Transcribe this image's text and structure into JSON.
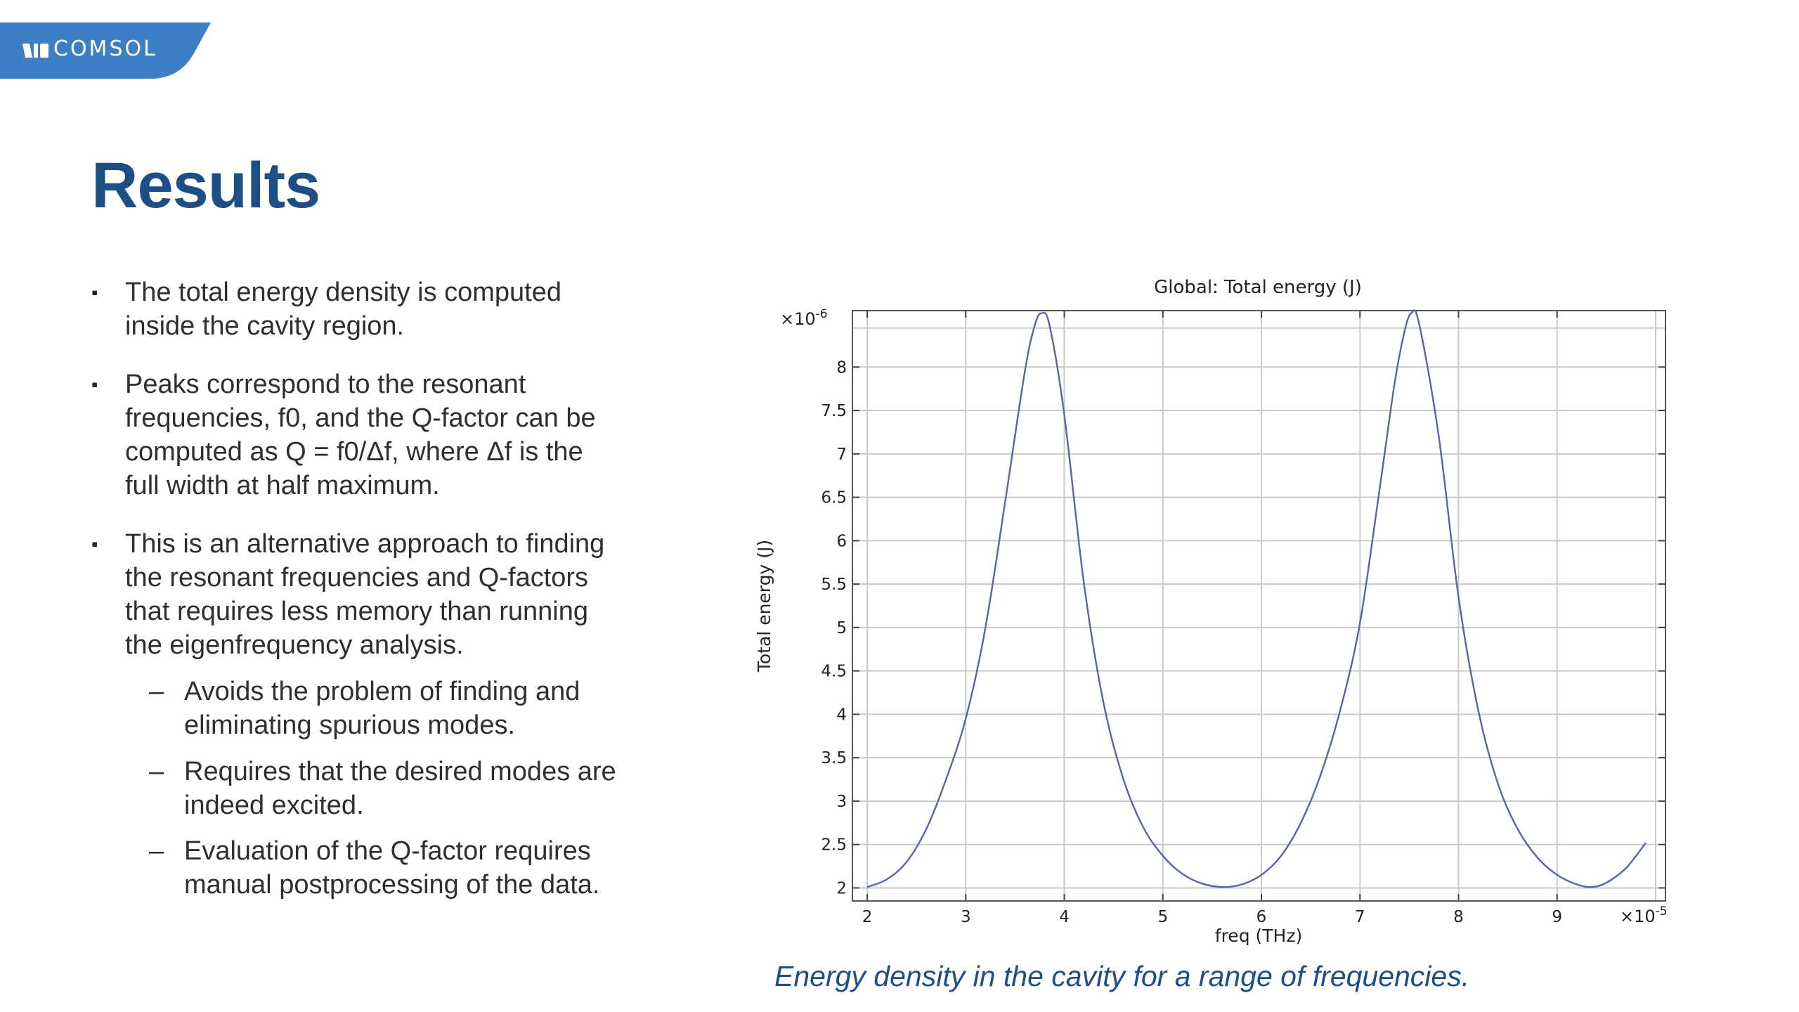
{
  "brand": {
    "name": "COMSOL",
    "color": "#3d7fc4",
    "mark_icon": "comsol-logo-icon"
  },
  "title": "Results",
  "bullets": [
    {
      "marker": "▪",
      "lines": [
        "The total energy density is computed",
        "inside the cavity region."
      ]
    },
    {
      "marker": "▪",
      "lines": [
        "Peaks correspond to the resonant",
        "frequencies, f0, and the Q-factor can be",
        "computed as Q = f0/Δf, where Δf is the",
        "full width at half maximum."
      ]
    },
    {
      "marker": "▪",
      "lines": [
        "This is an alternative approach to finding",
        "the resonant frequencies and Q-factors",
        "that requires less memory than running",
        "the eigenfrequency analysis."
      ]
    }
  ],
  "subbullets": [
    {
      "marker": "–",
      "lines": [
        "Avoids the problem of finding and",
        "eliminating spurious modes."
      ]
    },
    {
      "marker": "–",
      "lines": [
        "Requires that the desired modes are",
        "indeed excited."
      ]
    },
    {
      "marker": "–",
      "lines": [
        "Evaluation of the Q-factor requires",
        "manual postprocessing of the data."
      ]
    }
  ],
  "caption": "Energy density in the cavity for a range of frequencies.",
  "chart_data": {
    "type": "line",
    "title": "Global: Total energy (J)",
    "xlabel": "freq (THz)",
    "ylabel": "Total energy (J)",
    "x_multiplier_label": "×10",
    "x_multiplier_exp": "-5",
    "y_multiplier_label": "×10",
    "y_multiplier_exp": "-6",
    "xlim": [
      1.85,
      10.1
    ],
    "ylim": [
      1.85,
      8.65
    ],
    "x_ticks": [
      "2",
      "3",
      "4",
      "5",
      "6",
      "7",
      "8",
      "9"
    ],
    "y_ticks": [
      "2",
      "2.5",
      "3",
      "3.5",
      "4",
      "4.5",
      "5",
      "5.5",
      "6",
      "6.5",
      "7",
      "7.5",
      "8"
    ],
    "grid": true,
    "line_color": "#5566a6",
    "x": [
      2.0,
      2.2,
      2.4,
      2.6,
      2.8,
      3.0,
      3.2,
      3.4,
      3.6,
      3.7,
      3.77,
      3.85,
      4.0,
      4.2,
      4.4,
      4.6,
      4.8,
      5.0,
      5.2,
      5.4,
      5.6,
      5.8,
      6.0,
      6.2,
      6.4,
      6.6,
      6.8,
      7.0,
      7.2,
      7.35,
      7.45,
      7.52,
      7.6,
      7.8,
      8.0,
      8.2,
      8.4,
      8.6,
      8.8,
      9.0,
      9.2,
      9.35,
      9.5,
      9.7,
      9.9
    ],
    "y": [
      2.01,
      2.1,
      2.3,
      2.68,
      3.25,
      3.95,
      5.0,
      6.45,
      7.95,
      8.48,
      8.62,
      8.48,
      7.45,
      5.5,
      4.12,
      3.25,
      2.7,
      2.37,
      2.16,
      2.05,
      2.01,
      2.04,
      2.15,
      2.37,
      2.75,
      3.3,
      4.05,
      5.05,
      6.6,
      7.8,
      8.4,
      8.62,
      8.5,
      7.2,
      5.35,
      4.05,
      3.2,
      2.68,
      2.35,
      2.15,
      2.04,
      2.01,
      2.06,
      2.23,
      2.52
    ]
  }
}
